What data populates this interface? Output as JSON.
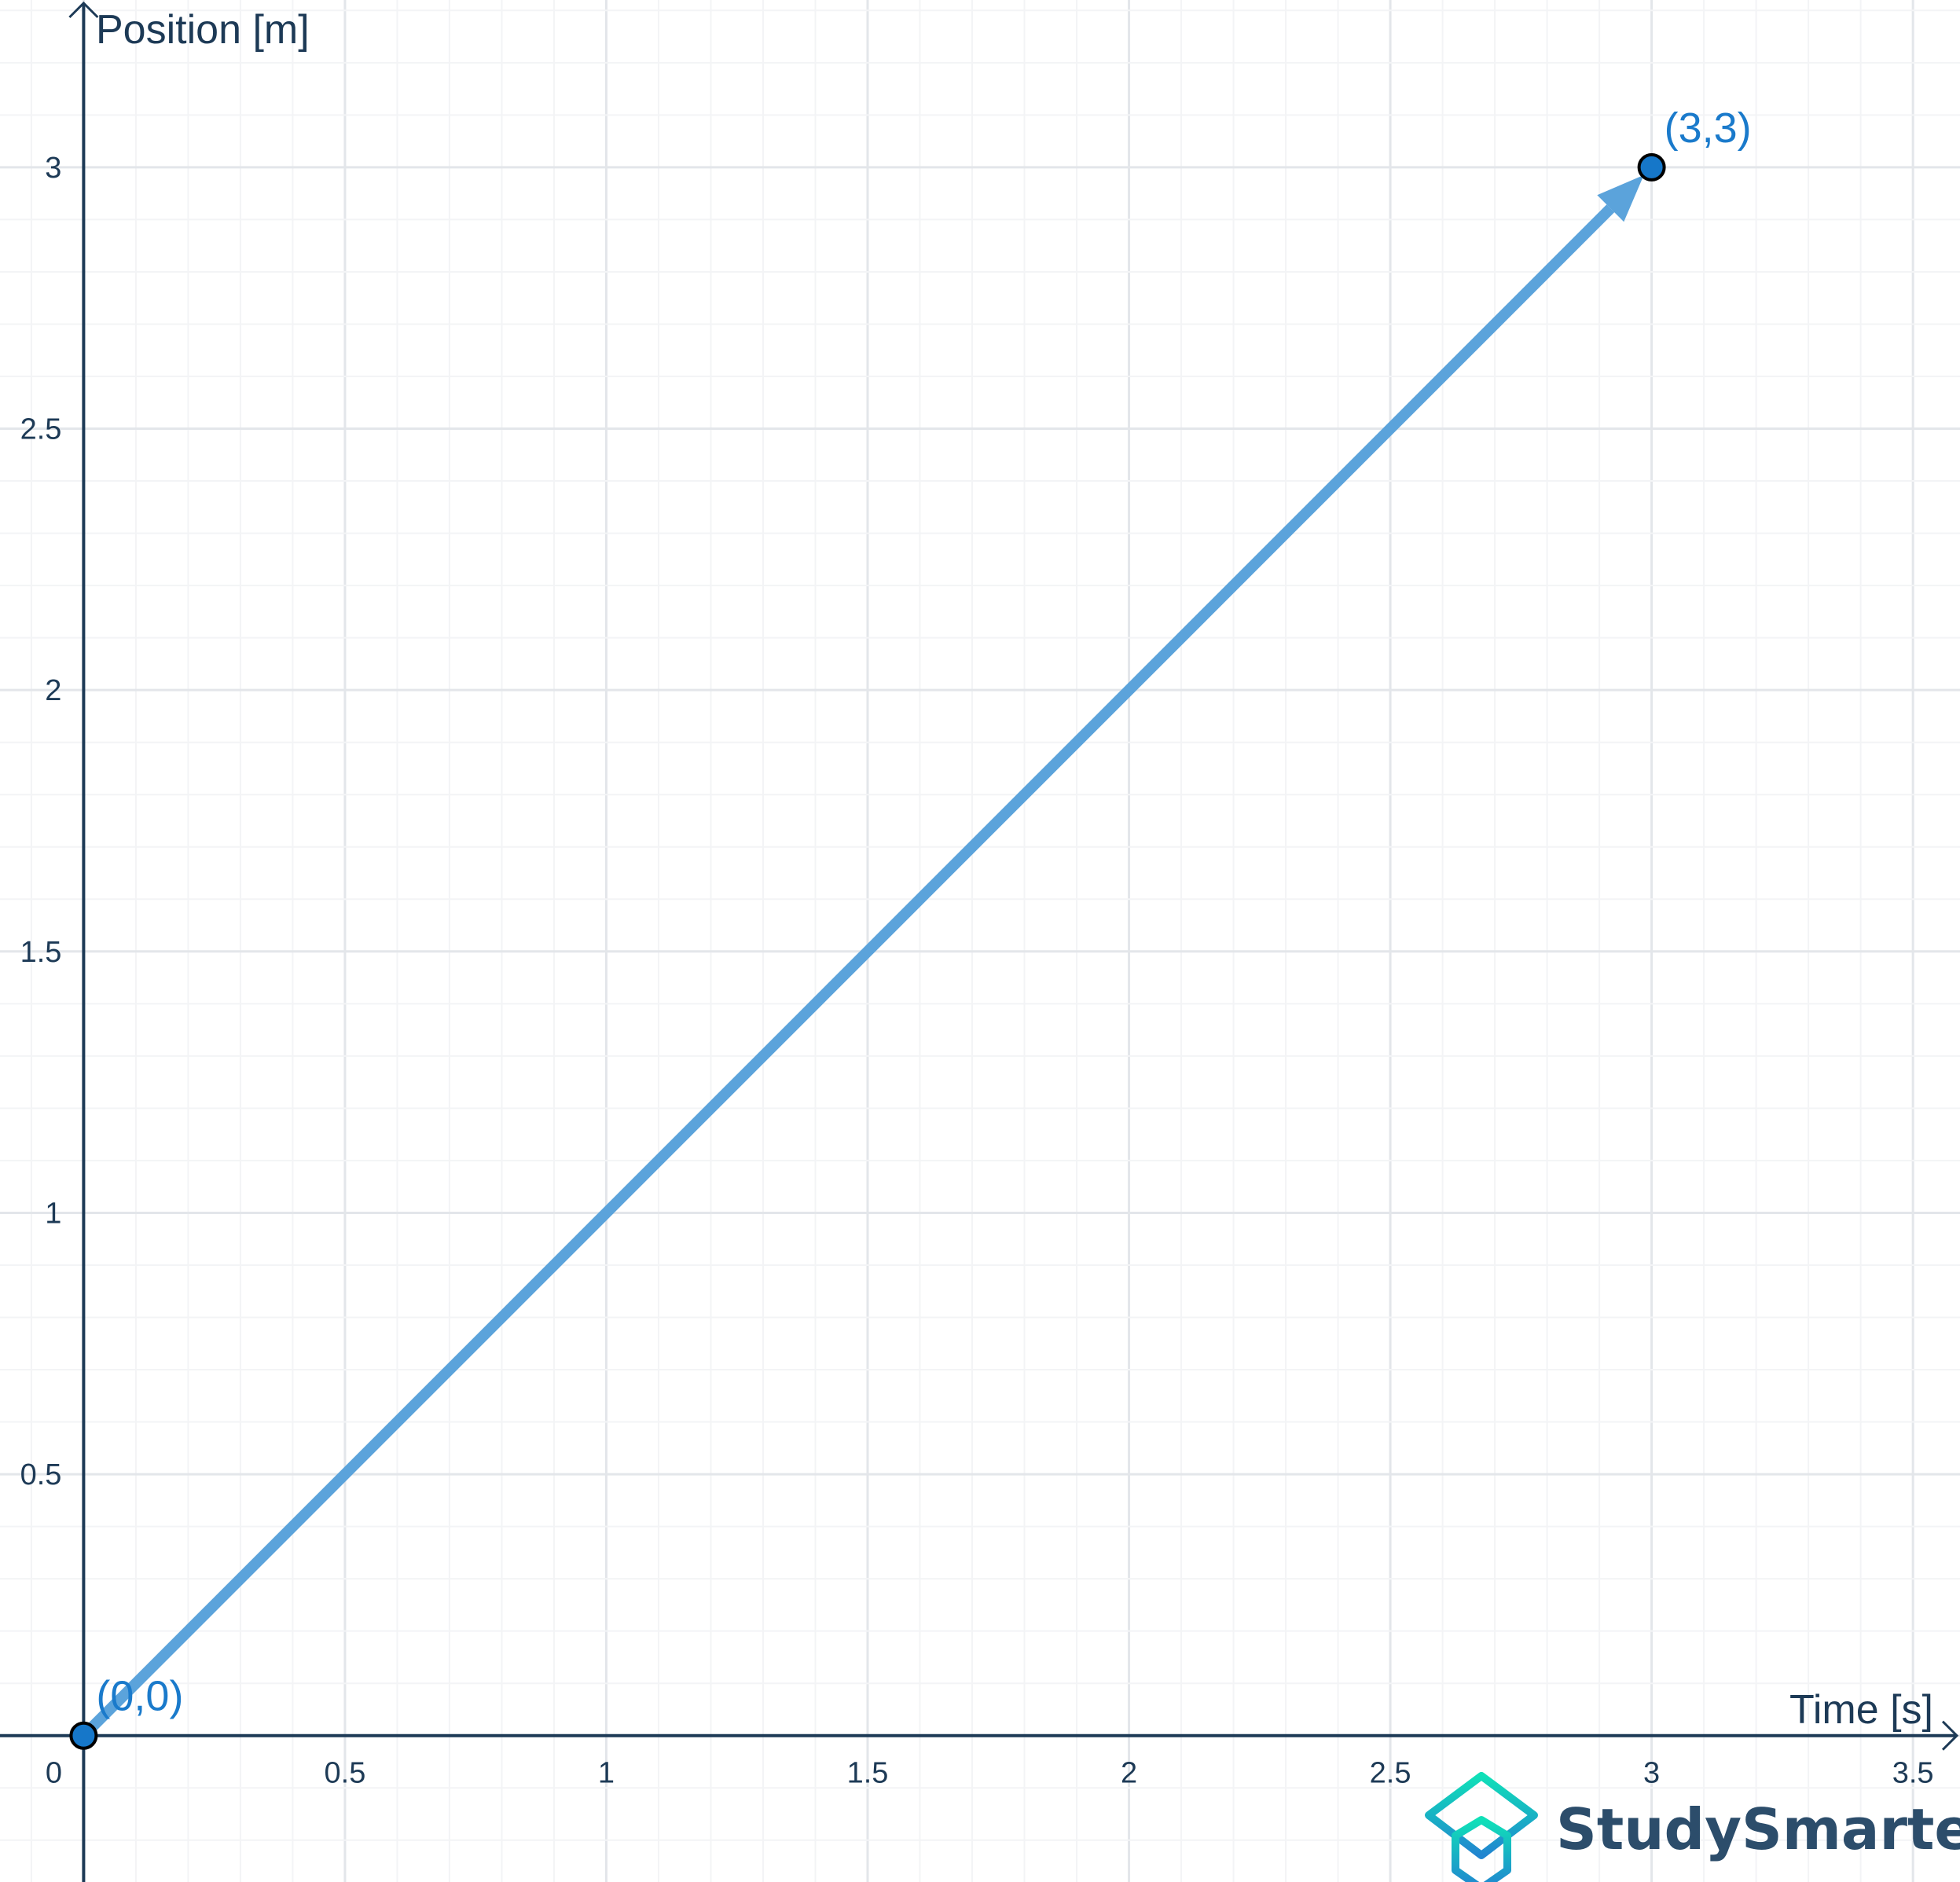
{
  "chart_data": {
    "type": "line",
    "title": "",
    "xlabel": "Time [s]",
    "ylabel": "Position [m]",
    "xlim": [
      -0.16,
      3.59
    ],
    "ylim": [
      -0.28,
      3.32
    ],
    "grid": true,
    "minor_grid_step": 0.1,
    "x_ticks": [
      0,
      0.5,
      1,
      1.5,
      2,
      2.5,
      3,
      3.5
    ],
    "x_tick_labels": [
      "0",
      "0.5",
      "1",
      "1.5",
      "2",
      "2.5",
      "3",
      "3.5"
    ],
    "y_ticks": [
      0.5,
      1,
      1.5,
      2,
      2.5,
      3
    ],
    "y_tick_labels": [
      "0.5",
      "1",
      "1.5",
      "2",
      "2.5",
      "3"
    ],
    "vector": {
      "from": [
        0,
        0
      ],
      "to": [
        3,
        3
      ],
      "color": "#5ba3db"
    },
    "points": [
      {
        "x": 0,
        "y": 0,
        "label": "(0,0)"
      },
      {
        "x": 3,
        "y": 3,
        "label": "(3,3)"
      }
    ],
    "point_color": "#1677c9",
    "label_color": "#1a7acb",
    "axis_color": "#1d3a56"
  },
  "logo": {
    "text": "StudySmarter"
  }
}
